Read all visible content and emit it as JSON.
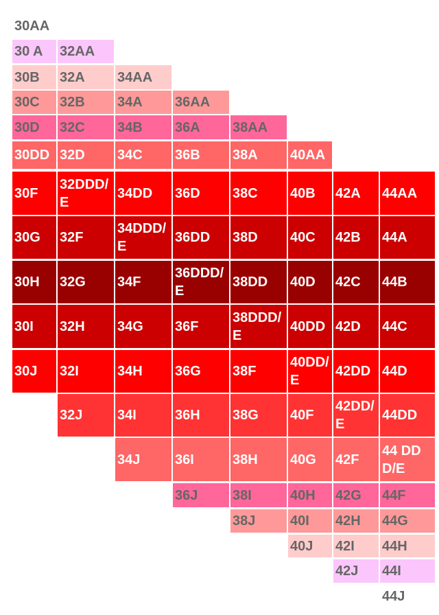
{
  "rows": [
    [
      "30AA",
      null,
      null,
      null,
      null,
      null,
      null,
      null
    ],
    [
      "30 A",
      "32AA",
      null,
      null,
      null,
      null,
      null,
      null
    ],
    [
      "30B",
      "32A",
      "34AA",
      null,
      null,
      null,
      null,
      null
    ],
    [
      "30C",
      "32B",
      "34A",
      "36AA",
      null,
      null,
      null,
      null
    ],
    [
      "30D",
      "32C",
      "34B",
      "36A",
      "38AA",
      null,
      null,
      null
    ],
    [
      "30DD",
      "32D",
      "34C",
      "36B",
      "38A",
      "40AA",
      null,
      null
    ],
    [
      "30F",
      "32DDD/E",
      "34DD",
      "36D",
      "38C",
      "40B",
      "42A",
      "44AA"
    ],
    [
      "30G",
      "32F",
      "34DDD/E",
      "36DD",
      "38D",
      "40C",
      "42B",
      "44A"
    ],
    [
      "30H",
      "32G",
      "34F",
      "36DDD/E",
      "38DD",
      "40D",
      "42C",
      "44B"
    ],
    [
      "30I",
      "32H",
      "34G",
      "36F",
      "38DDD/E",
      "40DD",
      "42D",
      "44C"
    ],
    [
      "30J",
      "32I",
      "34H",
      "36G",
      "38F",
      "40DD/E",
      "42DD",
      "44D"
    ],
    [
      null,
      "32J",
      "34I",
      "36H",
      "38G",
      "40F",
      "42DD/E",
      "44DD"
    ],
    [
      null,
      null,
      "34J",
      "36I",
      "38H",
      "40G",
      "42F",
      "44 DDD/E"
    ],
    [
      null,
      null,
      null,
      "36J",
      "38I",
      "40H",
      "42G",
      "44F"
    ],
    [
      null,
      null,
      null,
      null,
      "38J",
      "40I",
      "42H",
      "44G"
    ],
    [
      null,
      null,
      null,
      null,
      null,
      "40J",
      "42I",
      "44H"
    ],
    [
      null,
      null,
      null,
      null,
      null,
      null,
      "42J",
      "44I"
    ],
    [
      null,
      null,
      null,
      null,
      null,
      null,
      null,
      "44J"
    ]
  ]
}
